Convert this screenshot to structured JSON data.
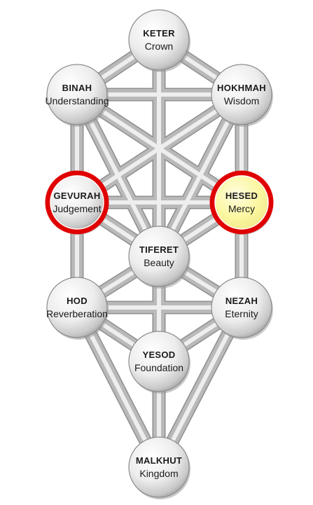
{
  "diagram": {
    "nodes": [
      {
        "id": "keter",
        "title": "KETER",
        "subtitle": "Crown"
      },
      {
        "id": "binah",
        "title": "BINAH",
        "subtitle": "Understanding"
      },
      {
        "id": "hokhmah",
        "title": "HOKHMAH",
        "subtitle": "Wisdom"
      },
      {
        "id": "gevurah",
        "title": "GEVURAH",
        "subtitle": "Judgement",
        "highlight": true
      },
      {
        "id": "hesed",
        "title": "HESED",
        "subtitle": "Mercy",
        "highlight": true
      },
      {
        "id": "tiferet",
        "title": "TIFERET",
        "subtitle": "Beauty"
      },
      {
        "id": "hod",
        "title": "HOD",
        "subtitle": "Reverberation"
      },
      {
        "id": "nezah",
        "title": "NEZAH",
        "subtitle": "Eternity"
      },
      {
        "id": "yesod",
        "title": "YESOD",
        "subtitle": "Foundation"
      },
      {
        "id": "malkhut",
        "title": "MALKHUT",
        "subtitle": "Kingdom"
      }
    ],
    "edges": [
      [
        "keter",
        "binah"
      ],
      [
        "keter",
        "hokhmah"
      ],
      [
        "keter",
        "tiferet"
      ],
      [
        "binah",
        "hokhmah"
      ],
      [
        "binah",
        "gevurah"
      ],
      [
        "binah",
        "tiferet"
      ],
      [
        "binah",
        "hesed"
      ],
      [
        "hokhmah",
        "hesed"
      ],
      [
        "hokhmah",
        "tiferet"
      ],
      [
        "hokhmah",
        "gevurah"
      ],
      [
        "gevurah",
        "hesed"
      ],
      [
        "gevurah",
        "tiferet"
      ],
      [
        "gevurah",
        "hod"
      ],
      [
        "hesed",
        "tiferet"
      ],
      [
        "hesed",
        "nezah"
      ],
      [
        "tiferet",
        "hod"
      ],
      [
        "tiferet",
        "nezah"
      ],
      [
        "tiferet",
        "yesod"
      ],
      [
        "hod",
        "nezah"
      ],
      [
        "hod",
        "yesod"
      ],
      [
        "hod",
        "malkhut"
      ],
      [
        "nezah",
        "yesod"
      ],
      [
        "nezah",
        "malkhut"
      ],
      [
        "yesod",
        "malkhut"
      ]
    ],
    "colors": {
      "sphere": "#f4f4f4",
      "sphere_shade": "#9a9a9a",
      "highlight_fill": "#fbf7a0",
      "highlight_ring": "#e00000",
      "path": "#bdbdbd"
    }
  }
}
